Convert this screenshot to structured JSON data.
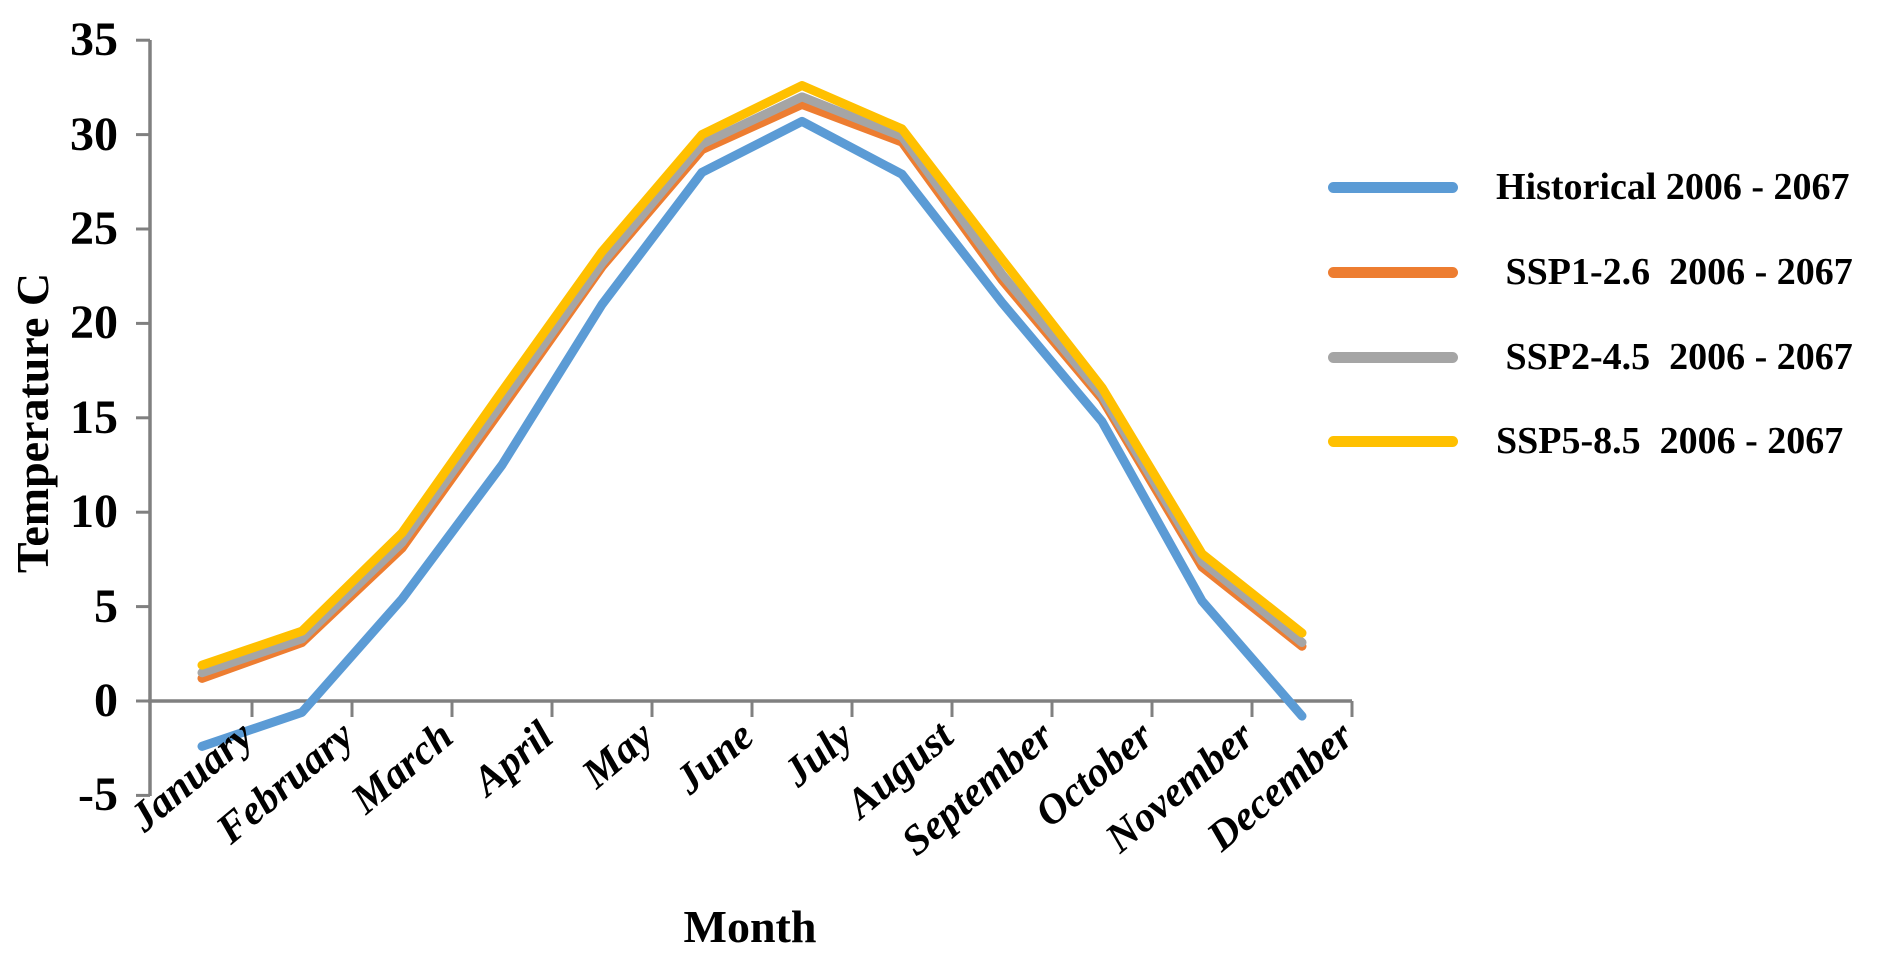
{
  "chart_data": {
    "type": "line",
    "title": "",
    "xlabel": "Month",
    "ylabel": "Temperature C",
    "categories": [
      "January",
      "February",
      "March",
      "April",
      "May",
      "June",
      "July",
      "August",
      "September",
      "October",
      "November",
      "December"
    ],
    "series": [
      {
        "name": "Historical 2006 - 2067",
        "color": "#5B9BD5",
        "values": [
          -2.4,
          -0.6,
          5.4,
          12.5,
          21.0,
          28.0,
          30.7,
          27.9,
          21.1,
          14.8,
          5.3,
          -0.8
        ]
      },
      {
        "name": " SSP1-2.6  2006 - 2067",
        "color": "#ED7D31",
        "values": [
          1.2,
          3.1,
          8.1,
          15.5,
          23.0,
          29.2,
          31.6,
          29.6,
          22.3,
          16.0,
          7.1,
          2.9
        ]
      },
      {
        "name": " SSP2-4.5  2006 - 2067",
        "color": "#A5A5A5",
        "values": [
          1.5,
          3.3,
          8.4,
          15.8,
          23.2,
          29.5,
          32.0,
          29.9,
          22.6,
          16.2,
          7.4,
          3.1
        ]
      },
      {
        "name": "SSP5-8.5  2006 - 2067",
        "color": "#FFC000",
        "values": [
          1.9,
          3.7,
          8.9,
          16.4,
          23.8,
          30.0,
          32.6,
          30.3,
          23.4,
          16.6,
          7.8,
          3.6
        ]
      }
    ],
    "ylim": [
      -5,
      35
    ],
    "yticks": [
      -5,
      0,
      5,
      10,
      15,
      20,
      25,
      30,
      35
    ],
    "grid": false,
    "legend_position": "right",
    "axis_color": "#808080",
    "line_width": 9
  }
}
